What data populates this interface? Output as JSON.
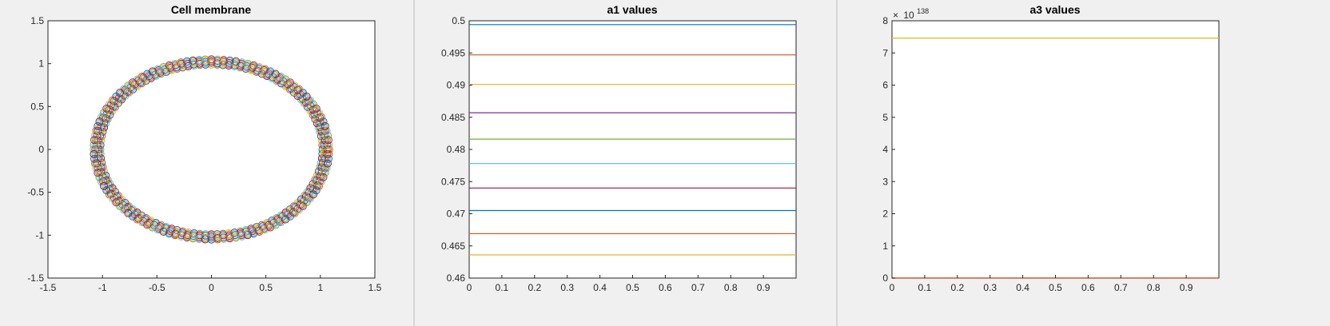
{
  "chart_data": [
    {
      "type": "scatter",
      "title": "Cell membrane",
      "xlabel": "",
      "ylabel": "",
      "xlim": [
        -1.5,
        1.5
      ],
      "ylim": [
        -1.5,
        1.5
      ],
      "xticks": [
        "-1.5",
        "-1",
        "-0.5",
        "0",
        "0.5",
        "1",
        "1.5"
      ],
      "yticks": [
        "1.5",
        "1",
        "0.5",
        "0",
        "-0.5",
        "-1",
        "-1.5"
      ],
      "grid": false,
      "ring": {
        "center": [
          0,
          0
        ],
        "radius_x": 1.05,
        "radius_y": 1.02,
        "num_points": 120
      },
      "marker": "circle",
      "colors": [
        "#0072bd",
        "#d95319",
        "#edb120",
        "#7e2f8e",
        "#77ac30",
        "#4dbeee",
        "#a2142f"
      ]
    },
    {
      "type": "line",
      "title": "a1 values",
      "xlabel": "",
      "ylabel": "",
      "xlim": [
        0,
        1
      ],
      "ylim": [
        0.46,
        0.5
      ],
      "xticks": [
        "0",
        "0.1",
        "0.2",
        "0.3",
        "0.4",
        "0.5",
        "0.6",
        "0.7",
        "0.8",
        "0.9"
      ],
      "yticks": [
        "0.5",
        "0.495",
        "0.49",
        "0.485",
        "0.48",
        "0.475",
        "0.47",
        "0.465",
        "0.46"
      ],
      "grid": false,
      "series": [
        {
          "color": "#0072bd",
          "values": [
            0.4994,
            0.4994
          ]
        },
        {
          "color": "#d95319",
          "values": [
            0.4947,
            0.4947
          ]
        },
        {
          "color": "#edb120",
          "values": [
            0.4901,
            0.4901
          ]
        },
        {
          "color": "#7e2f8e",
          "values": [
            0.4857,
            0.4857
          ]
        },
        {
          "color": "#77ac30",
          "values": [
            0.4816,
            0.4816
          ]
        },
        {
          "color": "#4dbeee",
          "values": [
            0.4778,
            0.4778
          ]
        },
        {
          "color": "#a2142f",
          "values": [
            0.474,
            0.474
          ]
        },
        {
          "color": "#0072bd",
          "values": [
            0.4705,
            0.4705
          ]
        },
        {
          "color": "#d95319",
          "values": [
            0.4669,
            0.4669
          ]
        },
        {
          "color": "#edb120",
          "values": [
            0.4636,
            0.4636
          ]
        }
      ]
    },
    {
      "type": "line",
      "title": "a3 values",
      "xlabel": "",
      "ylabel": "",
      "xlim": [
        0,
        1
      ],
      "ylim": [
        0,
        8
      ],
      "exponent_label": {
        "base": "10",
        "exponent": "138"
      },
      "xticks": [
        "0",
        "0.1",
        "0.2",
        "0.3",
        "0.4",
        "0.5",
        "0.6",
        "0.7",
        "0.8",
        "0.9"
      ],
      "yticks": [
        "8",
        "7",
        "6",
        "5",
        "4",
        "3",
        "2",
        "1",
        "0"
      ],
      "grid": false,
      "series": [
        {
          "color": "#0072bd",
          "values": [
            0,
            0
          ]
        },
        {
          "color": "#d95319",
          "values": [
            0,
            0
          ]
        },
        {
          "color": "#edb120",
          "values": [
            7.46,
            7.46
          ]
        }
      ]
    }
  ]
}
